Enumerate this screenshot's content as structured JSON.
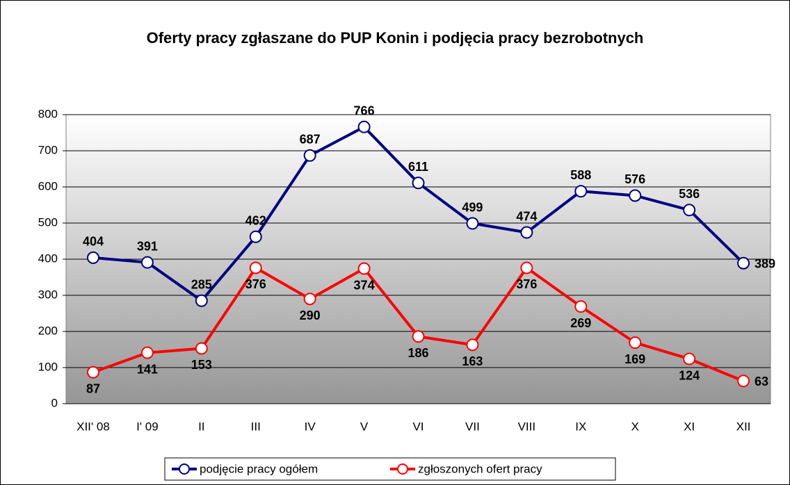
{
  "chart_data": {
    "type": "line",
    "title": "Oferty pracy zgłaszane do PUP Konin i podjęcia pracy bezrobotnych",
    "categories": [
      "XII' 08",
      "I' 09",
      "II",
      "III",
      "IV",
      "V",
      "VI",
      "VII",
      "VIII",
      "IX",
      "X",
      "XI",
      "XII"
    ],
    "series": [
      {
        "name": "podjęcie pracy ogółem",
        "color": "#000080",
        "values": [
          404,
          391,
          285,
          462,
          687,
          766,
          611,
          499,
          474,
          588,
          576,
          536,
          389
        ]
      },
      {
        "name": "zgłoszonych ofert pracy",
        "color": "#ff0000",
        "values": [
          87,
          141,
          153,
          376,
          290,
          374,
          186,
          163,
          376,
          269,
          169,
          124,
          63
        ]
      }
    ],
    "ylim": [
      0,
      800
    ],
    "yticks": [
      0,
      100,
      200,
      300,
      400,
      500,
      600,
      700,
      800
    ],
    "grid": true,
    "legend": "bottom"
  }
}
